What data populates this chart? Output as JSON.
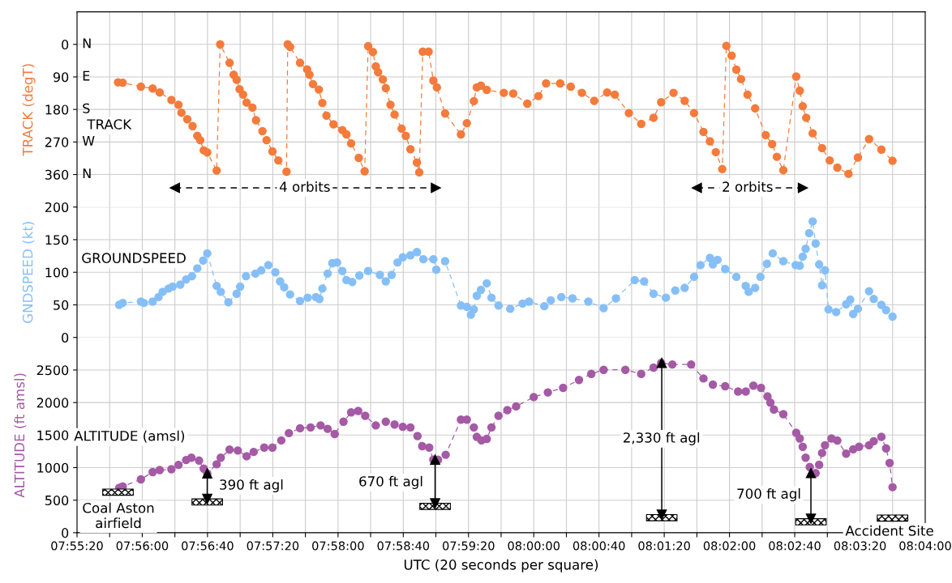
{
  "chart_data": [
    {
      "type": "line",
      "ylabel": "TRACK (degT)",
      "ylim": [
        450,
        -90
      ],
      "yticks": [
        0,
        90,
        180,
        270,
        360
      ],
      "xlim": [
        7.92222,
        8.06667
      ],
      "xticks": [
        {
          "value": 7.92222,
          "label": null
        },
        {
          "value": 7.92778,
          "label": null
        },
        {
          "value": 7.93333,
          "label": null
        },
        {
          "value": 7.93889,
          "label": null
        },
        {
          "value": 7.94444,
          "label": null
        },
        {
          "value": 7.95,
          "label": null
        },
        {
          "value": 7.95556,
          "label": null
        },
        {
          "value": 7.96111,
          "label": null
        },
        {
          "value": 7.96667,
          "label": null
        },
        {
          "value": 7.97222,
          "label": null
        },
        {
          "value": 7.97778,
          "label": null
        },
        {
          "value": 7.98333,
          "label": null
        },
        {
          "value": 7.98889,
          "label": null
        },
        {
          "value": 7.99444,
          "label": null
        },
        {
          "value": 8.0,
          "label": null
        },
        {
          "value": 8.00556,
          "label": null
        },
        {
          "value": 8.01111,
          "label": null
        },
        {
          "value": 8.01667,
          "label": null
        },
        {
          "value": 8.02222,
          "label": null
        },
        {
          "value": 8.02778,
          "label": null
        },
        {
          "value": 8.03333,
          "label": null
        },
        {
          "value": 8.03889,
          "label": null
        },
        {
          "value": 8.04444,
          "label": null
        },
        {
          "value": 8.05,
          "label": null
        },
        {
          "value": 8.05556,
          "label": null
        },
        {
          "value": 8.06111,
          "label": null
        },
        {
          "value": 8.06667,
          "label": null
        }
      ],
      "tick_labels": "y",
      "grid": true,
      "marker": "circle",
      "line_style": "dashed",
      "annotations": [
        "TRACK",
        "N",
        "E",
        "S",
        "W",
        "N",
        {
          "text": "4 orbits",
          "x": 7.961,
          "y": 397
        },
        {
          "text": "2 orbits",
          "x": 8.0364,
          "y": 397
        }
      ],
      "series": [
        {
          "color": "#f47b3b",
          "x": [
            7.9292,
            7.93,
            7.9331,
            7.9351,
            7.9363,
            7.9383,
            7.9395,
            7.94,
            7.941,
            7.9419,
            7.9427,
            7.9432,
            7.9438,
            7.9444,
            7.946,
            7.9466,
            7.9482,
            7.9489,
            7.9494,
            7.9499,
            7.9505,
            7.9511,
            7.9521,
            7.9527,
            7.9538,
            7.9545,
            7.9555,
            7.9565,
            7.9579,
            7.9581,
            7.9585,
            7.9602,
            7.9614,
            7.9618,
            7.9624,
            7.9634,
            7.964,
            7.9647,
            7.9659,
            7.9674,
            7.9681,
            7.9689,
            7.9702,
            7.9712,
            7.9718,
            7.9726,
            7.9731,
            7.9735,
            7.9743,
            7.9748,
            7.9756,
            7.9763,
            7.9775,
            7.9782,
            7.979,
            7.9801,
            7.9805,
            7.9811,
            7.9821,
            7.9829,
            7.9835,
            7.9849,
            7.9876,
            7.9886,
            7.9898,
            7.9903,
            7.991,
            7.992,
            7.9949,
            7.9965,
            7.9989,
            8.0008,
            8.0021,
            8.0045,
            8.0063,
            8.0082,
            8.0103,
            8.0125,
            8.0138,
            8.0162,
            8.0183,
            8.0204,
            8.0217,
            8.0238,
            8.0257,
            8.0273,
            8.0289,
            8.03,
            8.031,
            8.0321,
            8.0328,
            8.0337,
            8.0345,
            8.0353,
            8.0364,
            8.0377,
            8.0395,
            8.0406,
            8.0414,
            8.0425,
            8.0447,
            8.0453,
            8.0458,
            8.0464,
            8.0475,
            8.0491,
            8.0504,
            8.0517,
            8.0536,
            8.0552,
            8.0571,
            8.0592,
            8.0611
          ],
          "values": [
            105,
            106,
            117,
            122,
            133,
            154,
            167,
            189,
            207,
            226,
            253,
            265,
            293,
            299,
            349,
            0,
            51,
            84,
            98,
            124,
            139,
            161,
            175,
            210,
            240,
            265,
            296,
            321,
            352,
            0,
            7,
            51,
            69,
            84,
            110,
            125,
            162,
            197,
            221,
            237,
            249,
            274,
            314,
            351,
            5,
            21,
            61,
            77,
            97,
            121,
            167,
            194,
            233,
            253,
            290,
            327,
            354,
            20,
            20,
            100,
            119,
            191,
            249,
            218,
            157,
            119,
            114,
            126,
            134,
            136,
            164,
            143,
            108,
            108,
            117,
            134,
            156,
            133,
            139,
            190,
            220,
            203,
            160,
            134,
            156,
            190,
            242,
            268,
            298,
            345,
            4,
            31,
            70,
            96,
            139,
            177,
            251,
            276,
            311,
            348,
            89,
            128,
            171,
            203,
            246,
            287,
            321,
            341,
            358,
            313,
            262,
            291,
            322
          ]
        },
        {
          "color": "#000000",
          "marker": "triangle",
          "line_style": "dashed",
          "x": [
            7.93889,
            7.98333
          ],
          "values": [
            397,
            397
          ]
        },
        {
          "color": "#000000",
          "marker": "triangle",
          "line_style": "dashed",
          "x": [
            8.02778,
            8.04583
          ],
          "values": [
            397,
            397
          ]
        }
      ]
    },
    {
      "type": "line",
      "ylabel": "GNDSPEED (kt)",
      "ylim": [
        0,
        200
      ],
      "yticks": [
        0,
        50,
        100,
        150,
        200
      ],
      "xlim": [
        7.92222,
        8.06667
      ],
      "xticks": [
        {
          "value": 7.92222,
          "label": null
        },
        {
          "value": 7.92778,
          "label": null
        },
        {
          "value": 7.93333,
          "label": null
        },
        {
          "value": 7.93889,
          "label": null
        },
        {
          "value": 7.94444,
          "label": null
        },
        {
          "value": 7.95,
          "label": null
        },
        {
          "value": 7.95556,
          "label": null
        },
        {
          "value": 7.96111,
          "label": null
        },
        {
          "value": 7.96667,
          "label": null
        },
        {
          "value": 7.97222,
          "label": null
        },
        {
          "value": 7.97778,
          "label": null
        },
        {
          "value": 7.98333,
          "label": null
        },
        {
          "value": 7.98889,
          "label": null
        },
        {
          "value": 7.99444,
          "label": null
        },
        {
          "value": 8.0,
          "label": null
        },
        {
          "value": 8.00556,
          "label": null
        },
        {
          "value": 8.01111,
          "label": null
        },
        {
          "value": 8.01667,
          "label": null
        },
        {
          "value": 8.02222,
          "label": null
        },
        {
          "value": 8.02778,
          "label": null
        },
        {
          "value": 8.03333,
          "label": null
        },
        {
          "value": 8.03889,
          "label": null
        },
        {
          "value": 8.04444,
          "label": null
        },
        {
          "value": 8.05,
          "label": null
        },
        {
          "value": 8.05556,
          "label": null
        },
        {
          "value": 8.06111,
          "label": null
        },
        {
          "value": 8.06667,
          "label": null
        }
      ],
      "tick_labels": "y",
      "grid": true,
      "marker": "circle",
      "line_style": "dashed",
      "annotations": [
        "GROUNDSPEED"
      ],
      "series": [
        {
          "color": "#86bff7",
          "x": [
            7.9294,
            7.93,
            7.9331,
            7.9336,
            7.9351,
            7.9361,
            7.9368,
            7.9378,
            7.9385,
            7.9398,
            7.9408,
            7.9418,
            7.9427,
            7.9437,
            7.9444,
            7.946,
            7.9467,
            7.948,
            7.9494,
            7.95,
            7.951,
            7.9526,
            7.9536,
            7.9548,
            7.956,
            7.9568,
            7.9575,
            7.9585,
            7.9602,
            7.9615,
            7.9629,
            7.9635,
            7.964,
            7.9649,
            7.9657,
            7.9665,
            7.9674,
            7.9681,
            7.9691,
            7.9703,
            7.9718,
            7.9738,
            7.9748,
            7.9758,
            7.9768,
            7.9777,
            7.979,
            7.9801,
            7.9812,
            7.9829,
            7.9834,
            7.9849,
            7.9876,
            7.9886,
            7.9893,
            7.9898,
            7.9903,
            7.991,
            7.992,
            7.9928,
            7.994,
            7.996,
            7.9981,
            7.9992,
            8.0018,
            8.0029,
            8.0047,
            8.0066,
            8.0093,
            8.0119,
            8.014,
            8.0172,
            8.0188,
            8.0204,
            8.0225,
            8.0241,
            8.0257,
            8.0273,
            8.0284,
            8.03,
            8.0305,
            8.0313,
            8.0326,
            8.0345,
            8.0361,
            8.0366,
            8.0377,
            8.0386,
            8.0397,
            8.0407,
            8.0425,
            8.0446,
            8.0453,
            8.0458,
            8.0463,
            8.0469,
            8.0475,
            8.048,
            8.0486,
            8.0491,
            8.0496,
            8.0502,
            8.0515,
            8.0532,
            8.0539,
            8.0544,
            8.0552,
            8.0571,
            8.0579,
            8.0592,
            8.06,
            8.0611
          ],
          "values": [
            50,
            53,
            55,
            53,
            55,
            62,
            70,
            75,
            78,
            81,
            89,
            94,
            106,
            118,
            129,
            79,
            70,
            54,
            67,
            78,
            94,
            98,
            103,
            111,
            100,
            86,
            77,
            66,
            56,
            61,
            62,
            59,
            75,
            98,
            114,
            115,
            102,
            88,
            85,
            95,
            102,
            96,
            86,
            96,
            115,
            123,
            126,
            131,
            120,
            120,
            104,
            117,
            49,
            47,
            35,
            43,
            64,
            73,
            83,
            61,
            49,
            44,
            52,
            55,
            48,
            57,
            62,
            60,
            55,
            45,
            60,
            88,
            86,
            67,
            61,
            72,
            76,
            93,
            111,
            122,
            112,
            119,
            105,
            93,
            79,
            70,
            76,
            93,
            113,
            129,
            117,
            111,
            110,
            124,
            136,
            160,
            178,
            144,
            112,
            80,
            103,
            43,
            39,
            51,
            58,
            36,
            44,
            71,
            59,
            50,
            42,
            32
          ]
        }
      ]
    },
    {
      "type": "line",
      "ylabel": "ALTITUDE (ft amsl)",
      "xlabel": "UTC (20 seconds per square)",
      "ylim": [
        0,
        3000
      ],
      "yticks": [
        0,
        500,
        1000,
        1500,
        2000,
        2500
      ],
      "xlim": [
        7.92222,
        8.06667
      ],
      "xticks": [
        {
          "value": 7.92222,
          "label": "07:55:20"
        },
        {
          "value": 7.92778,
          "label": null
        },
        {
          "value": 7.93333,
          "label": "07:56:00"
        },
        {
          "value": 7.93889,
          "label": null
        },
        {
          "value": 7.94444,
          "label": "07:56:40"
        },
        {
          "value": 7.95,
          "label": null
        },
        {
          "value": 7.95556,
          "label": "07:57:20"
        },
        {
          "value": 7.96111,
          "label": null
        },
        {
          "value": 7.96667,
          "label": "07:58:00"
        },
        {
          "value": 7.97222,
          "label": null
        },
        {
          "value": 7.97778,
          "label": "07:58:40"
        },
        {
          "value": 7.98333,
          "label": null
        },
        {
          "value": 7.98889,
          "label": "07:59:20"
        },
        {
          "value": 7.99444,
          "label": null
        },
        {
          "value": 8.0,
          "label": "08:00:00"
        },
        {
          "value": 8.00556,
          "label": null
        },
        {
          "value": 8.01111,
          "label": "08:00:40"
        },
        {
          "value": 8.01667,
          "label": null
        },
        {
          "value": 8.02222,
          "label": "08:01:20"
        },
        {
          "value": 8.02778,
          "label": null
        },
        {
          "value": 8.03333,
          "label": "08:02:00"
        },
        {
          "value": 8.03889,
          "label": null
        },
        {
          "value": 8.04444,
          "label": "08:02:40"
        },
        {
          "value": 8.05,
          "label": null
        },
        {
          "value": 8.05556,
          "label": "08:03:20"
        },
        {
          "value": 8.06111,
          "label": null
        },
        {
          "value": 8.06667,
          "label": "08:04:00"
        }
      ],
      "grid": true,
      "marker": "circle",
      "line_style": "dashed",
      "annotations": [
        "ALTITUDE (amsl)",
        "390 ft agl",
        "670 ft agl",
        "2,330 ft agl",
        "700 ft agl",
        "Coal Aston\nairfield",
        "Accident Site"
      ],
      "series": [
        {
          "color": "#a55aa5",
          "x": [
            7.9294,
            7.93,
            7.9331,
            7.9351,
            7.9363,
            7.9383,
            7.9395,
            7.9408,
            7.9417,
            7.943,
            7.9438,
            7.9444,
            7.946,
            7.9467,
            7.9482,
            7.9496,
            7.9511,
            7.9523,
            7.9541,
            7.9555,
            7.957,
            7.9583,
            7.9602,
            7.962,
            7.9637,
            7.9649,
            7.9661,
            7.9676,
            7.9689,
            7.9701,
            7.9713,
            7.9731,
            7.9748,
            7.9763,
            7.9777,
            7.979,
            7.9802,
            7.981,
            7.9822,
            7.9829,
            7.9837,
            7.985,
            7.9876,
            7.9886,
            7.9898,
            7.9903,
            7.9911,
            7.992,
            7.9928,
            7.994,
            7.9955,
            7.997,
            8.0,
            8.0024,
            8.005,
            8.0077,
            8.0098,
            8.0119,
            8.0156,
            8.0183,
            8.0204,
            8.0217,
            8.0236,
            8.0268,
            8.0289,
            8.0305,
            8.0326,
            8.0348,
            8.0361,
            8.0374,
            8.0387,
            8.0398,
            8.0403,
            8.0409,
            8.0425,
            8.0447,
            8.0453,
            8.0458,
            8.0463,
            8.047,
            8.048,
            8.0486,
            8.0491,
            8.0496,
            8.0507,
            8.0517,
            8.0532,
            8.0544,
            8.0554,
            8.0571,
            8.0579,
            8.0592,
            8.06,
            8.0606,
            8.0611
          ],
          "values": [
            688,
            710,
            820,
            931,
            962,
            975,
            1042,
            1117,
            1153,
            1108,
            984,
            910,
            1051,
            1153,
            1277,
            1263,
            1175,
            1241,
            1308,
            1308,
            1418,
            1530,
            1605,
            1618,
            1649,
            1596,
            1517,
            1706,
            1849,
            1871,
            1796,
            1649,
            1706,
            1663,
            1627,
            1618,
            1485,
            1330,
            1308,
            1122,
            1122,
            1198,
            1737,
            1737,
            1618,
            1472,
            1418,
            1441,
            1618,
            1796,
            1884,
            1941,
            2084,
            2156,
            2226,
            2347,
            2441,
            2503,
            2503,
            2441,
            2537,
            2609,
            2585,
            2585,
            2370,
            2275,
            2251,
            2169,
            2169,
            2260,
            2226,
            2094,
            1998,
            1893,
            1821,
            1535,
            1448,
            1320,
            1153,
            1010,
            915,
            1044,
            1225,
            1344,
            1448,
            1416,
            1215,
            1282,
            1320,
            1344,
            1406,
            1473,
            1296,
            1072,
            700
          ]
        },
        {
          "type": "bar",
          "color": "#000000",
          "x": [
            7.9292,
            7.9444,
            7.9832,
            8.0218,
            8.0472,
            8.0611
          ],
          "base": [
            575,
            425,
            357,
            184,
            120,
            177
          ],
          "values": [
            95,
            95,
            95,
            95,
            95,
            95
          ]
        },
        {
          "color": "#000000",
          "marker": "triangle",
          "line_style": "solid",
          "x": [
            7.9444,
            7.9444
          ],
          "values": [
            910,
            520
          ]
        },
        {
          "color": "#000000",
          "marker": "triangle",
          "line_style": "solid",
          "x": [
            7.9832,
            7.9832
          ],
          "values": [
            1122,
            452
          ]
        },
        {
          "color": "#000000",
          "marker": "triangle",
          "line_style": "solid",
          "x": [
            8.0218,
            8.0218
          ],
          "values": [
            2609,
            279
          ]
        },
        {
          "color": "#000000",
          "marker": "triangle",
          "line_style": "solid",
          "x": [
            8.0472,
            8.0472
          ],
          "values": [
            915,
            215
          ]
        }
      ]
    }
  ]
}
